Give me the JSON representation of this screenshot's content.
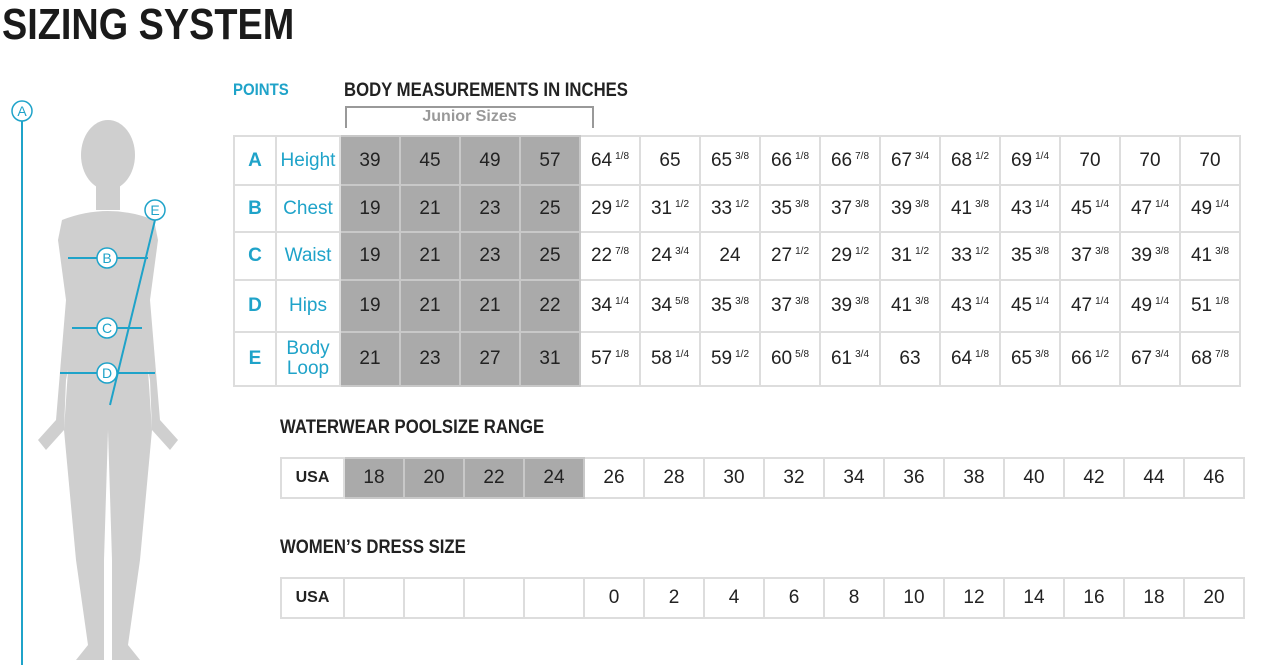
{
  "title": "SIZING SYSTEM",
  "points_label": "POINTS",
  "measurements_title": "BODY MEASUREMENTS IN INCHES",
  "junior_label": "Junior Sizes",
  "figure_points": [
    "A",
    "B",
    "C",
    "D",
    "E"
  ],
  "rows": [
    {
      "point": "A",
      "label": "Height",
      "junior": [
        "39",
        "45",
        "49",
        "57"
      ],
      "values": [
        [
          "64",
          "1/8"
        ],
        [
          "65",
          ""
        ],
        [
          "65",
          "3/8"
        ],
        [
          "66",
          "1/8"
        ],
        [
          "66",
          "7/8"
        ],
        [
          "67",
          "3/4"
        ],
        [
          "68",
          "1/2"
        ],
        [
          "69",
          "1/4"
        ],
        [
          "70",
          ""
        ],
        [
          "70",
          ""
        ],
        [
          "70",
          ""
        ]
      ]
    },
    {
      "point": "B",
      "label": "Chest",
      "junior": [
        "19",
        "21",
        "23",
        "25"
      ],
      "values": [
        [
          "29",
          "1/2"
        ],
        [
          "31",
          "1/2"
        ],
        [
          "33",
          "1/2"
        ],
        [
          "35",
          "3/8"
        ],
        [
          "37",
          "3/8"
        ],
        [
          "39",
          "3/8"
        ],
        [
          "41",
          "3/8"
        ],
        [
          "43",
          "1/4"
        ],
        [
          "45",
          "1/4"
        ],
        [
          "47",
          "1/4"
        ],
        [
          "49",
          "1/4"
        ]
      ]
    },
    {
      "point": "C",
      "label": "Waist",
      "junior": [
        "19",
        "21",
        "23",
        "25"
      ],
      "values": [
        [
          "22",
          "7/8"
        ],
        [
          "24",
          "3/4"
        ],
        [
          "24",
          ""
        ],
        [
          "27",
          "1/2"
        ],
        [
          "29",
          "1/2"
        ],
        [
          "31",
          "1/2"
        ],
        [
          "33",
          "1/2"
        ],
        [
          "35",
          "3/8"
        ],
        [
          "37",
          "3/8"
        ],
        [
          "39",
          "3/8"
        ],
        [
          "41",
          "3/8"
        ]
      ]
    },
    {
      "point": "D",
      "label": "Hips",
      "junior": [
        "19",
        "21",
        "21",
        "22"
      ],
      "values": [
        [
          "34",
          "1/4"
        ],
        [
          "34",
          "5/8"
        ],
        [
          "35",
          "3/8"
        ],
        [
          "37",
          "3/8"
        ],
        [
          "39",
          "3/8"
        ],
        [
          "41",
          "3/8"
        ],
        [
          "43",
          "1/4"
        ],
        [
          "45",
          "1/4"
        ],
        [
          "47",
          "1/4"
        ],
        [
          "49",
          "1/4"
        ],
        [
          "51",
          "1/8"
        ]
      ]
    },
    {
      "point": "E",
      "label": "Body Loop",
      "junior": [
        "21",
        "23",
        "27",
        "31"
      ],
      "values": [
        [
          "57",
          "1/8"
        ],
        [
          "58",
          "1/4"
        ],
        [
          "59",
          "1/2"
        ],
        [
          "60",
          "5/8"
        ],
        [
          "61",
          "3/4"
        ],
        [
          "63",
          ""
        ],
        [
          "64",
          "1/8"
        ],
        [
          "65",
          "3/8"
        ],
        [
          "66",
          "1/2"
        ],
        [
          "67",
          "3/4"
        ],
        [
          "68",
          "7/8"
        ]
      ]
    }
  ],
  "poolsize": {
    "title": "WATERWEAR POOLSIZE RANGE",
    "country": "USA",
    "junior": [
      "18",
      "20",
      "22",
      "24"
    ],
    "values": [
      "26",
      "28",
      "30",
      "32",
      "34",
      "36",
      "38",
      "40",
      "42",
      "44",
      "46"
    ]
  },
  "dress": {
    "title": "WOMEN’S DRESS SIZE",
    "country": "USA",
    "junior": [
      "",
      "",
      "",
      ""
    ],
    "values": [
      "0",
      "2",
      "4",
      "6",
      "8",
      "10",
      "12",
      "14",
      "16",
      "18",
      "20"
    ]
  },
  "colors": {
    "accent": "#1fa3c9",
    "junior_fill": "#aaaaaa",
    "figure": "#cfcfcf"
  }
}
